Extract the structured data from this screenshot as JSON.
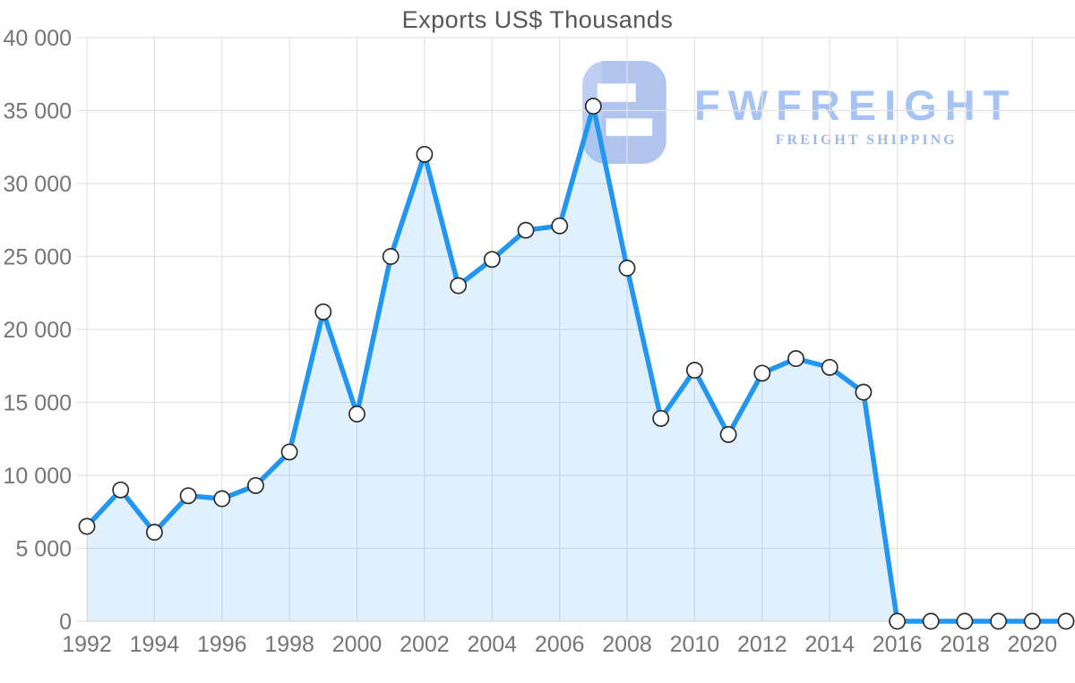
{
  "page": {
    "background": "#ffffff"
  },
  "chart_data": {
    "type": "area",
    "title": "Exports US$ Thousands",
    "xlabel": "",
    "ylabel": "",
    "x": [
      1992,
      1993,
      1994,
      1995,
      1996,
      1997,
      1998,
      1999,
      2000,
      2001,
      2002,
      2003,
      2004,
      2005,
      2006,
      2007,
      2008,
      2009,
      2010,
      2011,
      2012,
      2013,
      2014,
      2015,
      2016,
      2017,
      2018,
      2019,
      2020,
      2021
    ],
    "series": [
      {
        "name": "Exports US$ Thousands",
        "values": [
          6500,
          9000,
          6100,
          8600,
          8400,
          9300,
          11600,
          21200,
          14200,
          25000,
          32000,
          23000,
          24800,
          26800,
          27100,
          35300,
          24200,
          13900,
          17200,
          12800,
          17000,
          18000,
          17400,
          15700,
          0,
          0,
          0,
          0,
          0,
          0
        ]
      }
    ],
    "ylim": [
      0,
      40000
    ],
    "grid": true,
    "legend": "none",
    "marker_style": "open-circle",
    "y_ticks": [
      {
        "value": 0,
        "label": "0"
      },
      {
        "value": 5000,
        "label": "5 000"
      },
      {
        "value": 10000,
        "label": "10 000"
      },
      {
        "value": 15000,
        "label": "15 000"
      },
      {
        "value": 20000,
        "label": "20 000"
      },
      {
        "value": 25000,
        "label": "25 000"
      },
      {
        "value": 30000,
        "label": "30 000"
      },
      {
        "value": 35000,
        "label": "35 000"
      },
      {
        "value": 40000,
        "label": "40 000"
      }
    ],
    "x_ticks": [
      {
        "value": 1992,
        "label": "1992"
      },
      {
        "value": 1994,
        "label": "1994"
      },
      {
        "value": 1996,
        "label": "1996"
      },
      {
        "value": 1998,
        "label": "1998"
      },
      {
        "value": 2000,
        "label": "2000"
      },
      {
        "value": 2002,
        "label": "2002"
      },
      {
        "value": 2004,
        "label": "2004"
      },
      {
        "value": 2006,
        "label": "2006"
      },
      {
        "value": 2008,
        "label": "2008"
      },
      {
        "value": 2010,
        "label": "2010"
      },
      {
        "value": 2012,
        "label": "2012"
      },
      {
        "value": 2014,
        "label": "2014"
      },
      {
        "value": 2016,
        "label": "2016"
      },
      {
        "value": 2018,
        "label": "2018"
      },
      {
        "value": 2020,
        "label": "2020"
      }
    ],
    "colors": {
      "line": "#2196f3",
      "fill": "rgba(33,150,243,0.14)",
      "marker_fill": "#ffffff",
      "marker_stroke": "#2d2d2d",
      "grid": "#e2e2e2",
      "axis_label": "#757575",
      "title": "#565656"
    }
  },
  "watermark": {
    "brand": "FWFREIGHT",
    "tagline": "FREIGHT SHIPPING",
    "brand_color": "#a7c3f3",
    "tagline_color": "#9db8ec",
    "icon_color": "#b0c4ee"
  }
}
